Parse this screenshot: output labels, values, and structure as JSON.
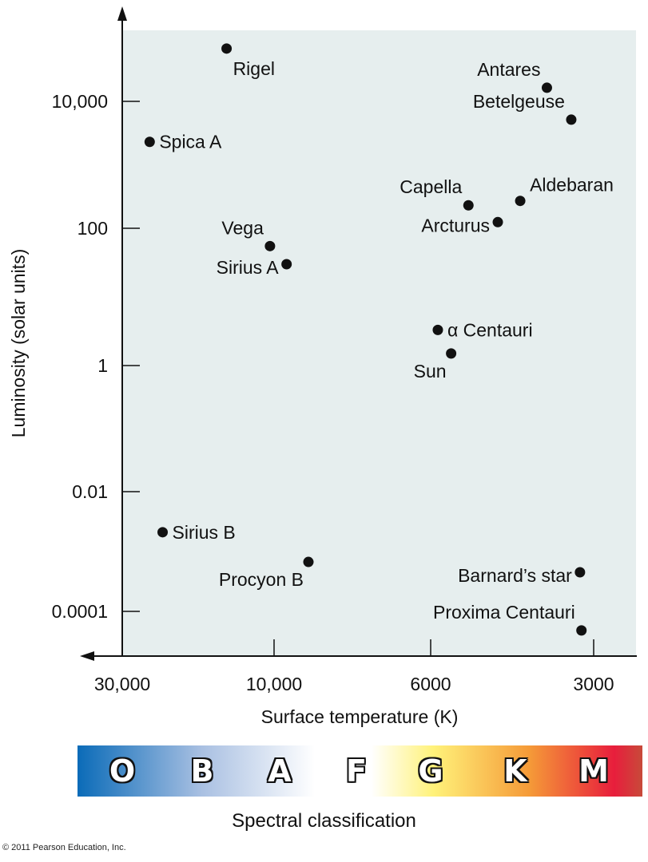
{
  "chart_data": {
    "type": "scatter",
    "title": "",
    "xlabel": "Surface temperature (K)",
    "ylabel": "Luminosity (solar units)",
    "x_scale": "log, decreasing to the right (schematic)",
    "y_scale": "log",
    "x_ticks": [
      {
        "value": 30000,
        "label": "30,000"
      },
      {
        "value": 10000,
        "label": "10,000"
      },
      {
        "value": 6000,
        "label": "6000"
      },
      {
        "value": 3000,
        "label": "3000"
      }
    ],
    "y_ticks": [
      {
        "value": 10000,
        "label": "10,000"
      },
      {
        "value": 100,
        "label": "100"
      },
      {
        "value": 1,
        "label": "1"
      },
      {
        "value": 0.01,
        "label": "0.01"
      },
      {
        "value": 0.0001,
        "label": "0.0001"
      }
    ],
    "xlim": [
      30000,
      2500
    ],
    "ylim": [
      2e-05,
      300000
    ],
    "grid": false,
    "background": "#E6EEEE",
    "points": [
      {
        "name": "Rigel",
        "temperature": 14100,
        "luminosity": 68000,
        "label_pos": "below-right"
      },
      {
        "name": "Spica A",
        "temperature": 24600,
        "luminosity": 2300,
        "label_pos": "right"
      },
      {
        "name": "Vega",
        "temperature": 10300,
        "luminosity": 55,
        "label_pos": "above-left"
      },
      {
        "name": "Sirius A",
        "temperature": 9600,
        "luminosity": 30,
        "label_pos": "left"
      },
      {
        "name": "Antares",
        "temperature": 3660,
        "luminosity": 16400,
        "label_pos": "above-left"
      },
      {
        "name": "Betelgeuse",
        "temperature": 3300,
        "luminosity": 5150,
        "label_pos": "above-left"
      },
      {
        "name": "Capella",
        "temperature": 5110,
        "luminosity": 230,
        "label_pos": "above-left"
      },
      {
        "name": "Aldebaran",
        "temperature": 4100,
        "luminosity": 270,
        "label_pos": "above-right"
      },
      {
        "name": "Arcturus",
        "temperature": 4510,
        "luminosity": 125,
        "label_pos": "left"
      },
      {
        "name": "α Centauri",
        "temperature": 5820,
        "luminosity": 3.3,
        "label_pos": "right"
      },
      {
        "name": "Sun",
        "temperature": 5500,
        "luminosity": 1.5,
        "label_pos": "below-left"
      },
      {
        "name": "Sirius B",
        "temperature": 22400,
        "luminosity": 0.0021,
        "label_pos": "right"
      },
      {
        "name": "Procyon B",
        "temperature": 8940,
        "luminosity": 0.00067,
        "label_pos": "below-left"
      },
      {
        "name": "Barnard’s star",
        "temperature": 3180,
        "luminosity": 0.00045,
        "label_pos": "left"
      },
      {
        "name": "Proxima Centauri",
        "temperature": 3160,
        "luminosity": 4.8e-05,
        "label_pos": "above-left"
      }
    ],
    "spectral_classification": {
      "title": "Spectral classification",
      "classes": [
        "O",
        "B",
        "A",
        "F",
        "G",
        "K",
        "M"
      ],
      "gradient_colors": [
        "#0A6BB8",
        "#A9C0E2",
        "#FFFFFF",
        "#FFFFFF",
        "#FFF27A",
        "#F59A38",
        "#E81E3C",
        "#C84A3A"
      ]
    }
  },
  "copyright": "© 2011 Pearson Education, Inc."
}
